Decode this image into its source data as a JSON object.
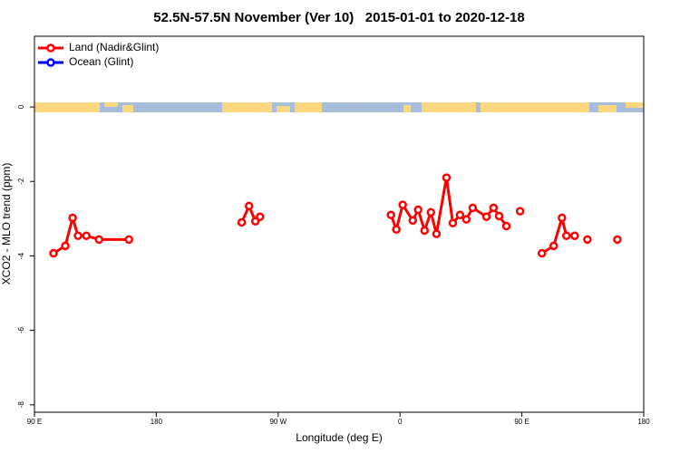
{
  "chart_data": {
    "type": "line",
    "title": "52.5N-57.5N November (Ver 10)   2015-01-01 to 2020-12-18",
    "x_label": "Longitude (deg E)",
    "y_label": "XCO2 - MLO trend (ppm)",
    "x": [
      104.1,
      112.8,
      118.2,
      122.2,
      128.3,
      137.7,
      159.8,
      200,
      243.1,
      248.5,
      253.2,
      256.6,
      300,
      353.3,
      357.3,
      362.0,
      369.4,
      373.4,
      378.1,
      382.8,
      386.9,
      394.3,
      399.0,
      404.3,
      409.0,
      413.7,
      423.8,
      429.1,
      433.2,
      438.6,
      443,
      448.7,
      456,
      464.8,
      473.5,
      479.6,
      482.9,
      489.0,
      493,
      498.4,
      510,
      520.5
    ],
    "series": [
      {
        "name": "Land (Nadir&Glint)",
        "color": "#ff0000",
        "values": [
          -3.93,
          -3.73,
          -2.98,
          -3.46,
          -3.46,
          -3.56,
          -3.56,
          null,
          -3.1,
          -2.66,
          -3.07,
          -2.95,
          null,
          -2.9,
          -3.29,
          -2.63,
          -3.05,
          -2.76,
          -3.32,
          -2.83,
          -3.41,
          -1.9,
          -3.12,
          -2.9,
          -3.02,
          -2.71,
          -2.95,
          -2.71,
          -2.93,
          -3.2,
          null,
          -2.8,
          null,
          -3.93,
          -3.73,
          -2.98,
          -3.46,
          -3.46,
          null,
          -3.56,
          null,
          -3.56
        ]
      },
      {
        "name": "Ocean (Glint)",
        "color": "#0000ff",
        "values": [
          null,
          null,
          null,
          null,
          null,
          null,
          null,
          null,
          null,
          null,
          null,
          null,
          null,
          null,
          null,
          null,
          null,
          null,
          null,
          null,
          null,
          null,
          null,
          null,
          null,
          null,
          null,
          null,
          null,
          null,
          null,
          null,
          null,
          null,
          null,
          null,
          null,
          null,
          null,
          null,
          null,
          null
        ]
      }
    ],
    "xlim": [
      90,
      540
    ],
    "xticks": [
      {
        "value": 90,
        "label": "90 E"
      },
      180,
      {
        "value": 270,
        "label": "90 W"
      },
      {
        "value": 360,
        "label": "0"
      },
      {
        "value": 450,
        "label": "90 E"
      },
      {
        "value": 540,
        "label": "180"
      }
    ],
    "ylim": [
      -8.2,
      1.9
    ],
    "yticks": [
      0,
      -2,
      -4,
      -6,
      -8
    ],
    "legend": "top-left"
  }
}
